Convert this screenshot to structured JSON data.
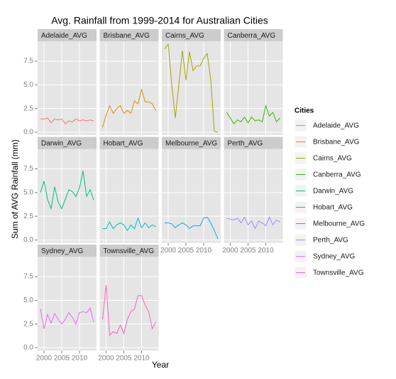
{
  "chart_data": {
    "type": "line",
    "title": "Avg. Rainfall from 1999-2014 for Australian Cities",
    "xlabel": "Year",
    "ylabel": "Sum of AVG Rainfall (mm)",
    "legend_title": "Cities",
    "legend": "right",
    "grid": true,
    "x": [
      1999,
      2000,
      2001,
      2002,
      2003,
      2004,
      2005,
      2006,
      2007,
      2008,
      2009,
      2010,
      2011,
      2012,
      2013,
      2014
    ],
    "xlim": [
      1998.2,
      2014.8
    ],
    "xticks": [
      2000,
      2005,
      2010
    ],
    "ylim": [
      -0.3,
      9.6
    ],
    "yticks": [
      {
        "value": 0,
        "label": "0.0"
      },
      2.5,
      {
        "value": 5,
        "label": "5.0"
      },
      7.5
    ],
    "series": [
      {
        "name": "Adelaide_AVG",
        "color": "#F8766D",
        "values": [
          1.4,
          1.4,
          1.5,
          1.0,
          1.4,
          1.3,
          1.4,
          0.9,
          1.2,
          1.1,
          1.4,
          1.2,
          1.3,
          1.2,
          1.3,
          1.2
        ]
      },
      {
        "name": "Brisbane_AVG",
        "color": "#D89000",
        "values": [
          0.5,
          1.8,
          2.8,
          2.0,
          2.5,
          2.8,
          2.0,
          2.3,
          2.0,
          3.3,
          3.0,
          4.5,
          3.2,
          3.2,
          3.0,
          2.3
        ]
      },
      {
        "name": "Cairns_AVG",
        "color": "#A3A500",
        "values": [
          8.8,
          9.3,
          5.0,
          1.5,
          5.0,
          8.6,
          5.5,
          8.5,
          6.5,
          7.0,
          7.0,
          7.8,
          8.3,
          5.5,
          0.1,
          0.0
        ]
      },
      {
        "name": "Canberra_AVG",
        "color": "#39B600",
        "values": [
          2.1,
          1.5,
          0.9,
          1.3,
          1.1,
          1.6,
          1.0,
          1.6,
          1.2,
          1.3,
          1.1,
          2.8,
          1.7,
          2.1,
          1.1,
          1.5
        ]
      },
      {
        "name": "Darwin_AVG",
        "color": "#00BF7D",
        "values": [
          5.0,
          6.2,
          4.3,
          3.3,
          5.6,
          4.0,
          3.3,
          4.3,
          5.3,
          5.1,
          4.6,
          5.5,
          7.3,
          4.6,
          5.3,
          4.2
        ]
      },
      {
        "name": "Hobart_AVG",
        "color": "#00BFC4",
        "values": [
          1.2,
          1.2,
          1.9,
          1.2,
          1.6,
          1.8,
          1.6,
          1.0,
          1.6,
          1.2,
          2.3,
          1.3,
          1.8,
          1.3,
          1.6,
          1.4
        ]
      },
      {
        "name": "Melbourne_AVG",
        "color": "#00B0F6",
        "values": [
          1.8,
          1.8,
          1.7,
          1.3,
          1.6,
          1.8,
          1.6,
          1.2,
          1.5,
          1.5,
          1.5,
          2.3,
          2.4,
          1.8,
          1.0,
          0.1
        ]
      },
      {
        "name": "Perth_AVG",
        "color": "#9590FF",
        "values": [
          2.3,
          2.2,
          2.1,
          2.3,
          1.8,
          2.4,
          1.6,
          2.0,
          1.2,
          2.0,
          1.8,
          1.5,
          2.4,
          1.6,
          2.1,
          1.9
        ]
      },
      {
        "name": "Sydney_AVG",
        "color": "#E76BF3",
        "values": [
          4.1,
          2.0,
          3.5,
          2.6,
          3.6,
          3.0,
          2.5,
          3.0,
          3.7,
          3.2,
          2.5,
          3.7,
          3.8,
          3.7,
          4.2,
          2.7
        ]
      },
      {
        "name": "Townsville_AVG",
        "color": "#FF62BC",
        "values": [
          3.0,
          6.6,
          1.3,
          1.7,
          1.5,
          2.4,
          1.5,
          3.0,
          3.8,
          4.1,
          5.5,
          5.5,
          4.5,
          3.8,
          2.0,
          2.7
        ]
      }
    ]
  }
}
